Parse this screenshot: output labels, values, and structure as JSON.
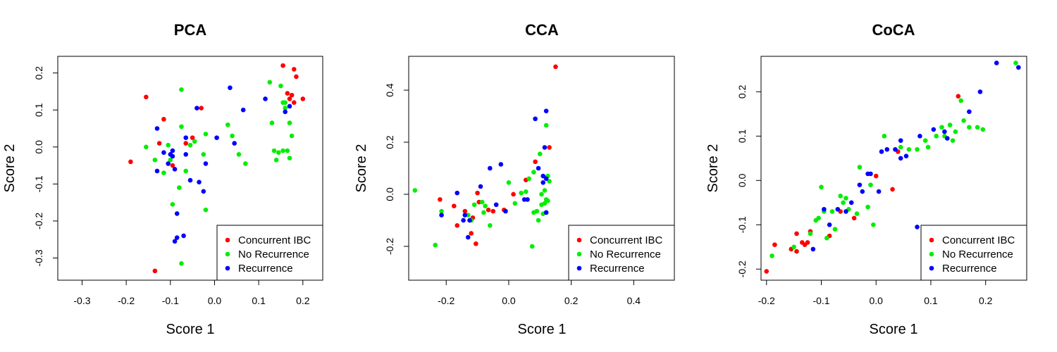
{
  "colors": {
    "Concurrent IBC": "#ff0000",
    "No Recurrence": "#00ee00",
    "Recurrence": "#0000ff"
  },
  "chart_data": [
    {
      "type": "scatter",
      "title": "PCA",
      "xlabel": "Score 1",
      "ylabel": "Score 2",
      "xlim": [
        -0.355,
        0.245
      ],
      "ylim": [
        -0.36,
        0.245
      ],
      "xticks": [
        "-0.3",
        "-0.2",
        "-0.1",
        "0.0",
        "0.1",
        "0.2"
      ],
      "yticks": [
        "-0.3",
        "-0.2",
        "-0.1",
        "0.0",
        "0.1",
        "0.2"
      ],
      "legend_position": "bottom-right",
      "series": [
        {
          "name": "Concurrent IBC",
          "points": [
            [
              -0.19,
              -0.04
            ],
            [
              -0.155,
              0.135
            ],
            [
              -0.115,
              0.075
            ],
            [
              -0.125,
              0.01
            ],
            [
              -0.095,
              -0.05
            ],
            [
              -0.135,
              -0.335
            ],
            [
              -0.03,
              0.105
            ],
            [
              -0.05,
              0.025
            ],
            [
              -0.065,
              0.01
            ],
            [
              0.155,
              0.22
            ],
            [
              0.18,
              0.21
            ],
            [
              0.185,
              0.19
            ],
            [
              0.165,
              0.145
            ],
            [
              0.175,
              0.14
            ],
            [
              0.2,
              0.13
            ],
            [
              0.18,
              0.12
            ],
            [
              0.17,
              0.13
            ]
          ]
        },
        {
          "name": "No Recurrence",
          "points": [
            [
              -0.155,
              0.0
            ],
            [
              -0.135,
              -0.035
            ],
            [
              -0.115,
              -0.07
            ],
            [
              -0.105,
              0.005
            ],
            [
              -0.1,
              -0.035
            ],
            [
              -0.095,
              -0.155
            ],
            [
              -0.08,
              -0.11
            ],
            [
              -0.075,
              0.155
            ],
            [
              -0.075,
              0.055
            ],
            [
              -0.065,
              -0.065
            ],
            [
              -0.075,
              -0.315
            ],
            [
              -0.055,
              0.005
            ],
            [
              -0.045,
              0.015
            ],
            [
              -0.025,
              -0.02
            ],
            [
              -0.02,
              0.035
            ],
            [
              -0.02,
              -0.17
            ],
            [
              0.03,
              0.06
            ],
            [
              0.04,
              0.03
            ],
            [
              0.055,
              -0.02
            ],
            [
              0.07,
              -0.045
            ],
            [
              0.125,
              0.175
            ],
            [
              0.13,
              0.065
            ],
            [
              0.135,
              -0.01
            ],
            [
              0.14,
              -0.035
            ],
            [
              0.145,
              -0.015
            ],
            [
              0.15,
              0.165
            ],
            [
              0.155,
              0.12
            ],
            [
              0.16,
              0.105
            ],
            [
              0.165,
              -0.01
            ],
            [
              0.155,
              -0.01
            ],
            [
              0.17,
              0.065
            ],
            [
              0.17,
              -0.03
            ],
            [
              0.175,
              0.03
            ],
            [
              0.16,
              0.12
            ]
          ]
        },
        {
          "name": "Recurrence",
          "points": [
            [
              -0.13,
              0.05
            ],
            [
              -0.13,
              -0.065
            ],
            [
              -0.115,
              -0.015
            ],
            [
              -0.105,
              -0.045
            ],
            [
              -0.1,
              -0.02
            ],
            [
              -0.095,
              -0.01
            ],
            [
              -0.095,
              -0.025
            ],
            [
              -0.09,
              -0.06
            ],
            [
              -0.09,
              -0.255
            ],
            [
              -0.085,
              -0.245
            ],
            [
              -0.085,
              -0.18
            ],
            [
              -0.07,
              -0.24
            ],
            [
              -0.065,
              0.025
            ],
            [
              -0.055,
              -0.09
            ],
            [
              -0.065,
              -0.02
            ],
            [
              -0.04,
              0.105
            ],
            [
              -0.035,
              -0.095
            ],
            [
              -0.025,
              -0.12
            ],
            [
              -0.02,
              -0.045
            ],
            [
              0.005,
              0.025
            ],
            [
              0.035,
              0.16
            ],
            [
              0.045,
              0.01
            ],
            [
              0.065,
              0.1
            ],
            [
              0.115,
              0.13
            ],
            [
              0.16,
              0.095
            ],
            [
              0.17,
              0.11
            ]
          ]
        }
      ]
    },
    {
      "type": "scatter",
      "title": "CCA",
      "xlabel": "Score 1",
      "ylabel": "Score 2",
      "xlim": [
        -0.32,
        0.53
      ],
      "ylim": [
        -0.33,
        0.53
      ],
      "xticks": [
        "-0.2",
        "0.0",
        "0.2",
        "0.4"
      ],
      "yticks": [
        "-0.2",
        "0.0",
        "0.2",
        "0.4"
      ],
      "legend_position": "bottom-right",
      "series": [
        {
          "name": "Concurrent IBC",
          "points": [
            [
              -0.22,
              -0.02
            ],
            [
              -0.175,
              -0.045
            ],
            [
              -0.165,
              -0.12
            ],
            [
              -0.14,
              -0.065
            ],
            [
              -0.12,
              -0.15
            ],
            [
              -0.115,
              -0.09
            ],
            [
              -0.105,
              -0.19
            ],
            [
              -0.1,
              0.005
            ],
            [
              -0.095,
              -0.03
            ],
            [
              -0.065,
              -0.06
            ],
            [
              -0.05,
              -0.065
            ],
            [
              -0.015,
              -0.06
            ],
            [
              0.015,
              0.0
            ],
            [
              0.055,
              0.055
            ],
            [
              0.085,
              0.125
            ],
            [
              0.13,
              0.18
            ],
            [
              0.15,
              0.49
            ]
          ]
        },
        {
          "name": "No Recurrence",
          "points": [
            [
              -0.3,
              0.015
            ],
            [
              -0.235,
              -0.195
            ],
            [
              -0.215,
              -0.065
            ],
            [
              -0.13,
              -0.08
            ],
            [
              -0.12,
              -0.1
            ],
            [
              -0.11,
              -0.04
            ],
            [
              -0.085,
              -0.03
            ],
            [
              -0.08,
              -0.07
            ],
            [
              -0.075,
              -0.045
            ],
            [
              -0.06,
              -0.12
            ],
            [
              0.0,
              0.045
            ],
            [
              0.02,
              -0.035
            ],
            [
              0.04,
              0.005
            ],
            [
              0.055,
              0.01
            ],
            [
              0.065,
              0.06
            ],
            [
              0.075,
              -0.2
            ],
            [
              0.08,
              0.085
            ],
            [
              0.08,
              -0.07
            ],
            [
              0.09,
              -0.065
            ],
            [
              0.095,
              -0.1
            ],
            [
              0.1,
              0.155
            ],
            [
              0.105,
              -0.04
            ],
            [
              0.105,
              0.0
            ],
            [
              0.11,
              -0.075
            ],
            [
              0.115,
              -0.035
            ],
            [
              0.115,
              0.015
            ],
            [
              0.12,
              -0.02
            ],
            [
              0.12,
              0.265
            ],
            [
              0.125,
              0.07
            ],
            [
              0.125,
              -0.025
            ],
            [
              0.13,
              0.05
            ]
          ]
        },
        {
          "name": "Recurrence",
          "points": [
            [
              -0.215,
              -0.08
            ],
            [
              -0.165,
              0.005
            ],
            [
              -0.145,
              -0.1
            ],
            [
              -0.14,
              -0.08
            ],
            [
              -0.13,
              -0.165
            ],
            [
              -0.125,
              -0.1
            ],
            [
              -0.09,
              0.03
            ],
            [
              -0.06,
              0.1
            ],
            [
              -0.04,
              -0.04
            ],
            [
              -0.025,
              0.115
            ],
            [
              -0.01,
              -0.065
            ],
            [
              0.05,
              -0.02
            ],
            [
              0.06,
              -0.02
            ],
            [
              0.085,
              0.29
            ],
            [
              0.095,
              0.1
            ],
            [
              0.11,
              0.07
            ],
            [
              0.11,
              0.045
            ],
            [
              0.115,
              0.18
            ],
            [
              0.12,
              -0.07
            ],
            [
              0.12,
              0.32
            ],
            [
              0.12,
              0.06
            ]
          ]
        }
      ]
    },
    {
      "type": "scatter",
      "title": "CoCA",
      "xlabel": "Score 1",
      "ylabel": "Score 2",
      "xlim": [
        -0.21,
        0.275
      ],
      "ylim": [
        -0.225,
        0.28
      ],
      "xticks": [
        "-0.2",
        "-0.1",
        "0.0",
        "0.1",
        "0.2"
      ],
      "yticks": [
        "-0.2",
        "-0.1",
        "0.0",
        "0.1",
        "0.2"
      ],
      "legend_position": "bottom-right",
      "series": [
        {
          "name": "Concurrent IBC",
          "points": [
            [
              -0.2,
              -0.205
            ],
            [
              -0.185,
              -0.145
            ],
            [
              -0.155,
              -0.155
            ],
            [
              -0.145,
              -0.16
            ],
            [
              -0.145,
              -0.12
            ],
            [
              -0.135,
              -0.14
            ],
            [
              -0.13,
              -0.145
            ],
            [
              -0.125,
              -0.14
            ],
            [
              -0.12,
              -0.115
            ],
            [
              -0.085,
              -0.125
            ],
            [
              -0.065,
              -0.07
            ],
            [
              -0.04,
              -0.085
            ],
            [
              0.0,
              0.01
            ],
            [
              0.03,
              -0.02
            ],
            [
              0.04,
              0.065
            ],
            [
              0.15,
              0.19
            ]
          ]
        },
        {
          "name": "No Recurrence",
          "points": [
            [
              -0.19,
              -0.17
            ],
            [
              -0.15,
              -0.15
            ],
            [
              -0.12,
              -0.12
            ],
            [
              -0.11,
              -0.09
            ],
            [
              -0.105,
              -0.085
            ],
            [
              -0.1,
              -0.015
            ],
            [
              -0.095,
              -0.07
            ],
            [
              -0.09,
              -0.13
            ],
            [
              -0.08,
              -0.07
            ],
            [
              -0.075,
              -0.11
            ],
            [
              -0.065,
              -0.035
            ],
            [
              -0.06,
              -0.05
            ],
            [
              -0.055,
              -0.04
            ],
            [
              -0.05,
              -0.065
            ],
            [
              -0.035,
              -0.075
            ],
            [
              -0.03,
              0.03
            ],
            [
              -0.015,
              -0.06
            ],
            [
              -0.01,
              -0.01
            ],
            [
              -0.005,
              -0.1
            ],
            [
              0.015,
              0.1
            ],
            [
              0.045,
              0.075
            ],
            [
              0.06,
              0.07
            ],
            [
              0.075,
              0.07
            ],
            [
              0.09,
              0.09
            ],
            [
              0.095,
              0.075
            ],
            [
              0.11,
              0.1
            ],
            [
              0.12,
              0.12
            ],
            [
              0.125,
              0.1
            ],
            [
              0.135,
              0.125
            ],
            [
              0.14,
              0.09
            ],
            [
              0.145,
              0.11
            ],
            [
              0.155,
              0.18
            ],
            [
              0.16,
              0.135
            ],
            [
              0.17,
              0.12
            ],
            [
              0.185,
              0.12
            ],
            [
              0.195,
              0.115
            ],
            [
              0.255,
              0.265
            ]
          ]
        },
        {
          "name": "Recurrence",
          "points": [
            [
              -0.115,
              -0.155
            ],
            [
              -0.095,
              -0.065
            ],
            [
              -0.085,
              -0.1
            ],
            [
              -0.07,
              -0.065
            ],
            [
              -0.055,
              -0.07
            ],
            [
              -0.045,
              -0.05
            ],
            [
              -0.03,
              -0.01
            ],
            [
              -0.025,
              -0.025
            ],
            [
              -0.015,
              0.015
            ],
            [
              -0.01,
              0.015
            ],
            [
              0.005,
              -0.025
            ],
            [
              0.01,
              0.065
            ],
            [
              0.02,
              0.07
            ],
            [
              0.035,
              0.07
            ],
            [
              0.045,
              0.05
            ],
            [
              0.045,
              0.09
            ],
            [
              0.055,
              0.055
            ],
            [
              0.075,
              -0.105
            ],
            [
              0.08,
              0.1
            ],
            [
              0.105,
              0.115
            ],
            [
              0.125,
              0.11
            ],
            [
              0.13,
              0.095
            ],
            [
              0.17,
              0.155
            ],
            [
              0.19,
              0.2
            ],
            [
              0.22,
              0.265
            ],
            [
              0.26,
              0.255
            ]
          ]
        }
      ]
    }
  ]
}
